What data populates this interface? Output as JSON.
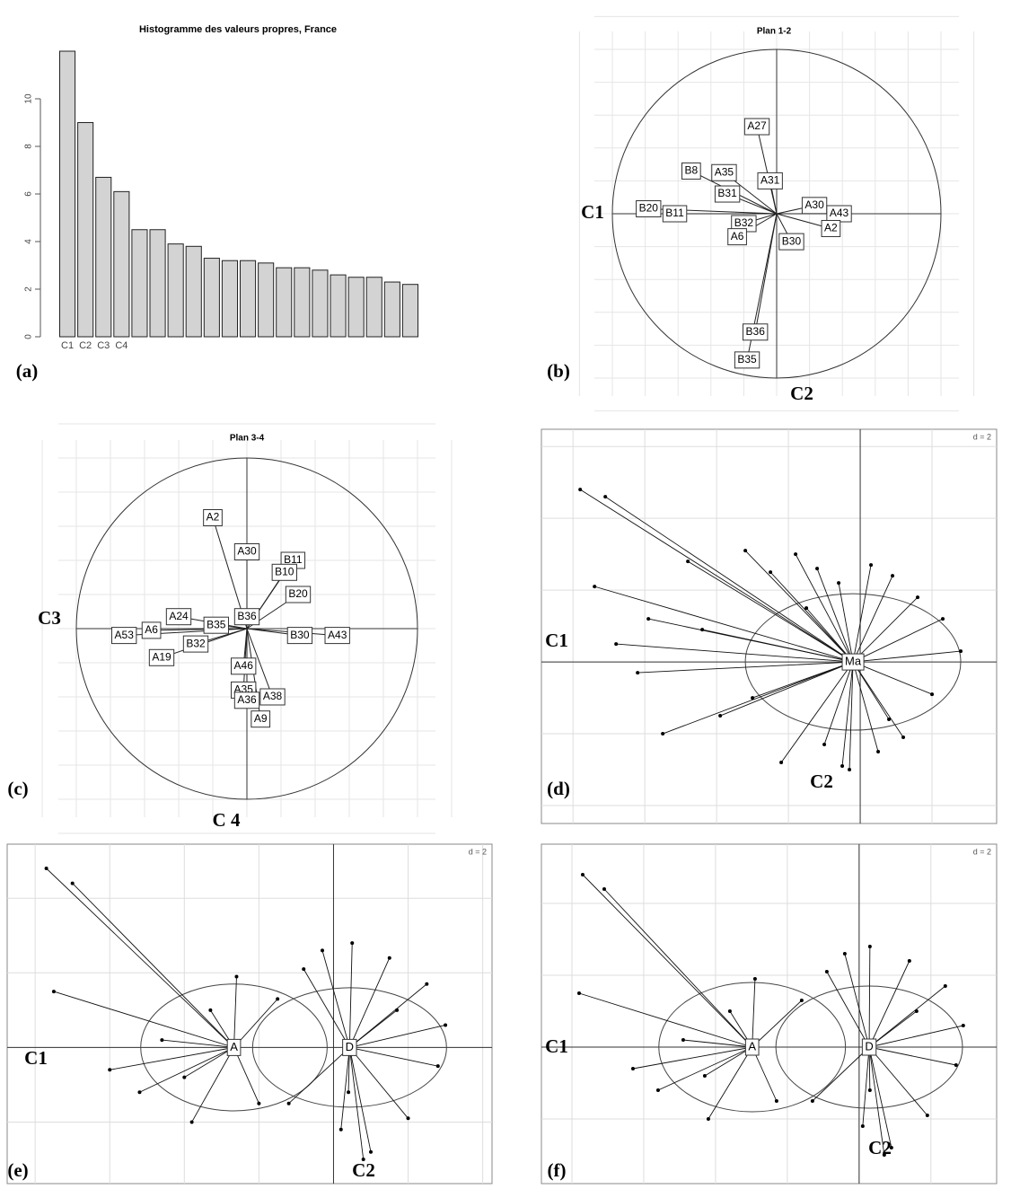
{
  "chart_data": [
    {
      "type": "bar",
      "panel": "(a)",
      "title": "Histogramme des valeurs propres, France",
      "categories": [
        "C1",
        "C2",
        "C3",
        "C4",
        null,
        null,
        null,
        null,
        null,
        null,
        null,
        null,
        null,
        null,
        null,
        null,
        null,
        null,
        null,
        null
      ],
      "values": [
        12.0,
        9.0,
        6.7,
        6.1,
        4.5,
        4.5,
        3.9,
        3.8,
        3.3,
        3.2,
        3.2,
        3.1,
        2.9,
        2.9,
        2.8,
        2.6,
        2.5,
        2.5,
        2.3,
        2.2
      ],
      "color": "#d3d3d3",
      "ylim": [
        0,
        12
      ],
      "yticks": [
        0,
        2,
        4,
        6,
        8,
        10
      ]
    },
    {
      "type": "correlation_circle",
      "panel": "(b)",
      "title": "Plan 1-2",
      "xlabel": "C1",
      "ylabel": "C2",
      "xlim": [
        -1,
        1
      ],
      "ylim": [
        -1,
        1
      ],
      "grid": true,
      "labels": [
        "A27",
        "B8",
        "A35",
        "B31",
        "A31",
        "A30",
        "A43",
        "A2",
        "B20",
        "B11",
        "B32",
        "A6",
        "B30",
        "B36",
        "B35"
      ],
      "x": [
        -0.12,
        -0.52,
        -0.32,
        -0.3,
        -0.04,
        0.23,
        0.38,
        0.33,
        -0.78,
        -0.62,
        -0.2,
        -0.24,
        0.09,
        -0.13,
        -0.18
      ],
      "y": [
        0.53,
        0.26,
        0.25,
        0.12,
        0.2,
        0.05,
        0.0,
        -0.09,
        0.03,
        0.0,
        -0.06,
        -0.14,
        -0.17,
        -0.72,
        -0.89
      ]
    },
    {
      "type": "correlation_circle",
      "panel": "(c)",
      "title": "Plan 3-4",
      "xlabel": "C3",
      "ylabel": "C 4",
      "xlim": [
        -1,
        1
      ],
      "ylim": [
        -1,
        1
      ],
      "grid": true,
      "labels": [
        "A2",
        "A30",
        "B11",
        "B10",
        "B20",
        "B36",
        "A24",
        "B35",
        "A6",
        "A53",
        "B32",
        "A19",
        "B30",
        "A43",
        "A46",
        "A35",
        "A38",
        "A36",
        "A9"
      ],
      "x": [
        -0.2,
        0.0,
        0.27,
        0.22,
        0.3,
        0.0,
        -0.4,
        -0.18,
        -0.56,
        -0.72,
        -0.3,
        -0.5,
        0.31,
        0.53,
        -0.02,
        -0.02,
        0.15,
        0.0,
        0.08
      ],
      "y": [
        0.65,
        0.45,
        0.4,
        0.33,
        0.2,
        0.07,
        0.07,
        0.02,
        -0.01,
        -0.04,
        -0.09,
        -0.17,
        -0.04,
        -0.04,
        -0.22,
        -0.36,
        -0.4,
        -0.42,
        -0.53
      ]
    },
    {
      "type": "class_scatter",
      "panel": "(d)",
      "xlabel": "C1",
      "ylabel": "C2",
      "grid_label": "d = 2",
      "grid_step": 2,
      "xlim": [
        -8.88,
        3.8
      ],
      "ylim": [
        -4.5,
        6.48
      ],
      "classes": [
        {
          "name": "Ma",
          "x": -0.2,
          "y": 0.0,
          "ellipse": [
            3.0,
            1.9
          ]
        }
      ],
      "x": [
        -7.8,
        -7.1,
        -7.4,
        -6.2,
        -5.5,
        -6.8,
        -5.9,
        -4.8,
        -3.9,
        -3.2,
        -2.5,
        -1.8,
        -1.2,
        -0.6,
        0.3,
        0.9,
        1.6,
        2.3,
        2.8,
        -1.0,
        -2.2,
        -0.3,
        0.5,
        1.2,
        -3.0,
        -4.4,
        -1.5,
        0.8,
        2.0,
        -0.5
      ],
      "y": [
        4.8,
        4.6,
        2.1,
        -0.3,
        -2.0,
        0.5,
        1.2,
        2.8,
        -1.5,
        3.1,
        2.5,
        3.0,
        2.6,
        2.2,
        2.7,
        2.4,
        1.8,
        1.2,
        0.3,
        -2.3,
        -2.8,
        -3.0,
        -2.5,
        -2.1,
        -1.0,
        0.9,
        1.5,
        -1.6,
        -0.9,
        -2.9
      ],
      "class": [
        0,
        0,
        0,
        0,
        0,
        0,
        0,
        0,
        0,
        0,
        0,
        0,
        0,
        0,
        0,
        0,
        0,
        0,
        0,
        0,
        0,
        0,
        0,
        0,
        0,
        0,
        0,
        0,
        0,
        0
      ]
    },
    {
      "type": "class_scatter",
      "panel": "(e)",
      "xlabel": "C1",
      "ylabel": "C2",
      "grid_label": "d = 2",
      "grid_step": 2,
      "xlim": [
        -8.75,
        4.25
      ],
      "ylim": [
        -3.65,
        5.45
      ],
      "classes": [
        {
          "name": "A",
          "x": -2.67,
          "y": 0.0,
          "ellipse": [
            2.5,
            1.7
          ]
        },
        {
          "name": "D",
          "x": 0.43,
          "y": 0.0,
          "ellipse": [
            2.6,
            1.6
          ]
        }
      ],
      "x": [
        -7.7,
        -7.0,
        -7.5,
        -4.6,
        -5.2,
        -3.8,
        -2.6,
        -1.5,
        -4.0,
        -6.0,
        -2.0,
        -3.3,
        0.5,
        1.5,
        2.5,
        3.0,
        -0.8,
        0.2,
        1.0,
        2.0,
        -1.2,
        0.8,
        2.8,
        1.7,
        -0.3,
        0.4
      ],
      "y": [
        4.8,
        4.4,
        1.5,
        0.2,
        -1.2,
        -2.0,
        1.9,
        1.3,
        -0.8,
        -0.6,
        -1.5,
        1.0,
        2.8,
        2.4,
        1.7,
        0.6,
        2.1,
        -2.2,
        -2.8,
        -1.9,
        -1.5,
        -3.0,
        -0.5,
        1.0,
        2.6,
        -1.2
      ],
      "class": [
        0,
        0,
        0,
        0,
        0,
        0,
        0,
        0,
        0,
        0,
        0,
        0,
        1,
        1,
        1,
        1,
        1,
        1,
        1,
        1,
        1,
        1,
        1,
        1,
        1,
        1
      ]
    },
    {
      "type": "class_scatter",
      "panel": "(f)",
      "xlabel": "C1",
      "ylabel": "C2",
      "grid_label": "d = 2",
      "grid_step": 2,
      "xlim": [
        -8.85,
        3.83
      ],
      "ylim": [
        -3.8,
        5.65
      ],
      "classes": [
        {
          "name": "A",
          "x": -2.98,
          "y": 0.0,
          "ellipse": [
            2.6,
            1.8
          ]
        },
        {
          "name": "D",
          "x": 0.28,
          "y": 0.0,
          "ellipse": [
            2.6,
            1.7
          ]
        }
      ],
      "x": [
        -7.7,
        -7.1,
        -7.8,
        -4.9,
        -5.6,
        -4.2,
        -2.9,
        -1.6,
        -4.3,
        -6.3,
        -2.3,
        -3.6,
        0.3,
        1.4,
        2.4,
        2.9,
        -0.9,
        0.1,
        0.9,
        1.9,
        -1.3,
        0.7,
        2.7,
        1.6,
        -0.4,
        0.3
      ],
      "y": [
        4.8,
        4.4,
        1.5,
        0.2,
        -1.2,
        -2.0,
        1.9,
        1.3,
        -0.8,
        -0.6,
        -1.5,
        1.0,
        2.8,
        2.4,
        1.7,
        0.6,
        2.1,
        -2.2,
        -2.8,
        -1.9,
        -1.5,
        -3.0,
        -0.5,
        1.0,
        2.6,
        -1.2
      ],
      "class": [
        0,
        0,
        0,
        0,
        0,
        0,
        0,
        0,
        0,
        0,
        0,
        0,
        1,
        1,
        1,
        1,
        1,
        1,
        1,
        1,
        1,
        1,
        1,
        1,
        1,
        1
      ]
    }
  ]
}
